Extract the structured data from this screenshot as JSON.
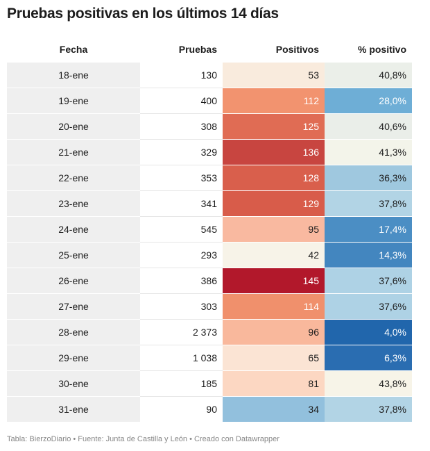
{
  "title": "Pruebas positivas en los últimos 14 días",
  "footer": "Tabla: BierzoDiario • Fuente: Junta de Castilla y León • Creado con Datawrapper",
  "chart_data": {
    "type": "table",
    "title": "Pruebas positivas en los últimos 14 días",
    "columns": [
      "Fecha",
      "Pruebas",
      "Positivos",
      "% positivo"
    ],
    "rows": [
      {
        "fecha": "18-ene",
        "pruebas": "130",
        "positivos": "53",
        "pct": "40,8%",
        "pos_bg": "#f9ebdd",
        "pos_fg": "#1d1d1d",
        "pct_bg": "#ebefe9",
        "pct_fg": "#1d1d1d"
      },
      {
        "fecha": "19-ene",
        "pruebas": "400",
        "positivos": "112",
        "pct": "28,0%",
        "pos_bg": "#f2936f",
        "pos_fg": "#ffffff",
        "pct_bg": "#6eaed6",
        "pct_fg": "#ffffff"
      },
      {
        "fecha": "20-ene",
        "pruebas": "308",
        "positivos": "125",
        "pct": "40,6%",
        "pos_bg": "#e06c54",
        "pos_fg": "#ffffff",
        "pct_bg": "#eaeee9",
        "pct_fg": "#1d1d1d"
      },
      {
        "fecha": "21-ene",
        "pruebas": "329",
        "positivos": "136",
        "pct": "41,3%",
        "pos_bg": "#c84540",
        "pos_fg": "#ffffff",
        "pct_bg": "#f3f4ea",
        "pct_fg": "#1d1d1d"
      },
      {
        "fecha": "22-ene",
        "pruebas": "353",
        "positivos": "128",
        "pct": "36,3%",
        "pos_bg": "#d95f4c",
        "pos_fg": "#ffffff",
        "pct_bg": "#9fc8df",
        "pct_fg": "#1d1d1d"
      },
      {
        "fecha": "23-ene",
        "pruebas": "341",
        "positivos": "129",
        "pct": "37,8%",
        "pos_bg": "#d85c4a",
        "pos_fg": "#ffffff",
        "pct_bg": "#b2d4e5",
        "pct_fg": "#1d1d1d"
      },
      {
        "fecha": "24-ene",
        "pruebas": "545",
        "positivos": "95",
        "pct": "17,4%",
        "pos_bg": "#f9b9a0",
        "pos_fg": "#1d1d1d",
        "pct_bg": "#4b8ec4",
        "pct_fg": "#ffffff"
      },
      {
        "fecha": "25-ene",
        "pruebas": "293",
        "positivos": "42",
        "pct": "14,3%",
        "pos_bg": "#f7f3e8",
        "pos_fg": "#1d1d1d",
        "pct_bg": "#4386bf",
        "pct_fg": "#ffffff"
      },
      {
        "fecha": "26-ene",
        "pruebas": "386",
        "positivos": "145",
        "pct": "37,6%",
        "pos_bg": "#b2182b",
        "pos_fg": "#ffffff",
        "pct_bg": "#aed2e5",
        "pct_fg": "#1d1d1d"
      },
      {
        "fecha": "27-ene",
        "pruebas": "303",
        "positivos": "114",
        "pct": "37,6%",
        "pos_bg": "#f0906c",
        "pos_fg": "#ffffff",
        "pct_bg": "#aed2e5",
        "pct_fg": "#1d1d1d"
      },
      {
        "fecha": "28-ene",
        "pruebas": "2 373",
        "positivos": "96",
        "pct": "4,0%",
        "pos_bg": "#f9b89c",
        "pos_fg": "#1d1d1d",
        "pct_bg": "#2166ac",
        "pct_fg": "#ffffff"
      },
      {
        "fecha": "29-ene",
        "pruebas": "1 038",
        "positivos": "65",
        "pct": "6,3%",
        "pos_bg": "#fbe4d4",
        "pos_fg": "#1d1d1d",
        "pct_bg": "#2a6db1",
        "pct_fg": "#ffffff"
      },
      {
        "fecha": "30-ene",
        "pruebas": "185",
        "positivos": "81",
        "pct": "43,8%",
        "pos_bg": "#fcd7c2",
        "pos_fg": "#1d1d1d",
        "pct_bg": "#f7f4e8",
        "pct_fg": "#1d1d1d"
      },
      {
        "fecha": "31-ene",
        "pruebas": "90",
        "positivos": "34",
        "pct": "37,8%",
        "pos_bg": "#92c0dd",
        "pos_fg": "#1d1d1d",
        "pct_bg": "#b2d4e5",
        "pct_fg": "#1d1d1d"
      }
    ]
  }
}
